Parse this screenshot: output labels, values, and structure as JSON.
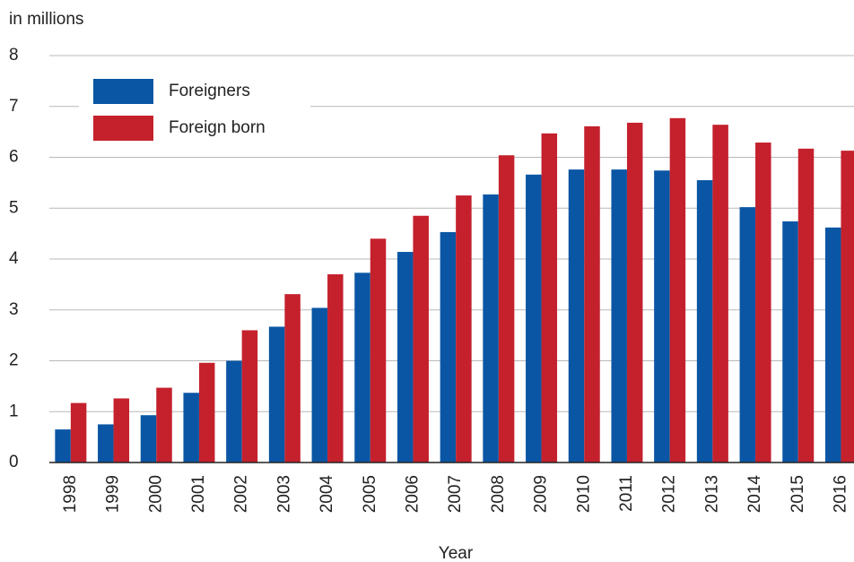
{
  "chart_data": {
    "type": "bar",
    "y_axis_label": "in millions",
    "x_axis_label": "Year",
    "categories": [
      "1998",
      "1999",
      "2000",
      "2001",
      "2002",
      "2003",
      "2004",
      "2005",
      "2006",
      "2007",
      "2008",
      "2009",
      "2010",
      "2011",
      "2012",
      "2013",
      "2014",
      "2015",
      "2016"
    ],
    "series": [
      {
        "name": "Foreigners",
        "color": "#0a56a4",
        "values": [
          0.65,
          0.75,
          0.93,
          1.37,
          2.0,
          2.67,
          3.04,
          3.73,
          4.14,
          4.53,
          5.27,
          5.66,
          5.76,
          5.76,
          5.74,
          5.55,
          5.02,
          4.74,
          4.62
        ]
      },
      {
        "name": "Foreign born",
        "color": "#c4212d",
        "values": [
          1.17,
          1.26,
          1.47,
          1.96,
          2.6,
          3.31,
          3.7,
          4.4,
          4.85,
          5.25,
          6.04,
          6.47,
          6.61,
          6.68,
          6.77,
          6.64,
          6.29,
          6.17,
          6.13
        ]
      }
    ],
    "ylim": [
      0,
      8
    ],
    "yticks": [
      0,
      1,
      2,
      3,
      4,
      5,
      6,
      7,
      8
    ],
    "grid": true
  }
}
